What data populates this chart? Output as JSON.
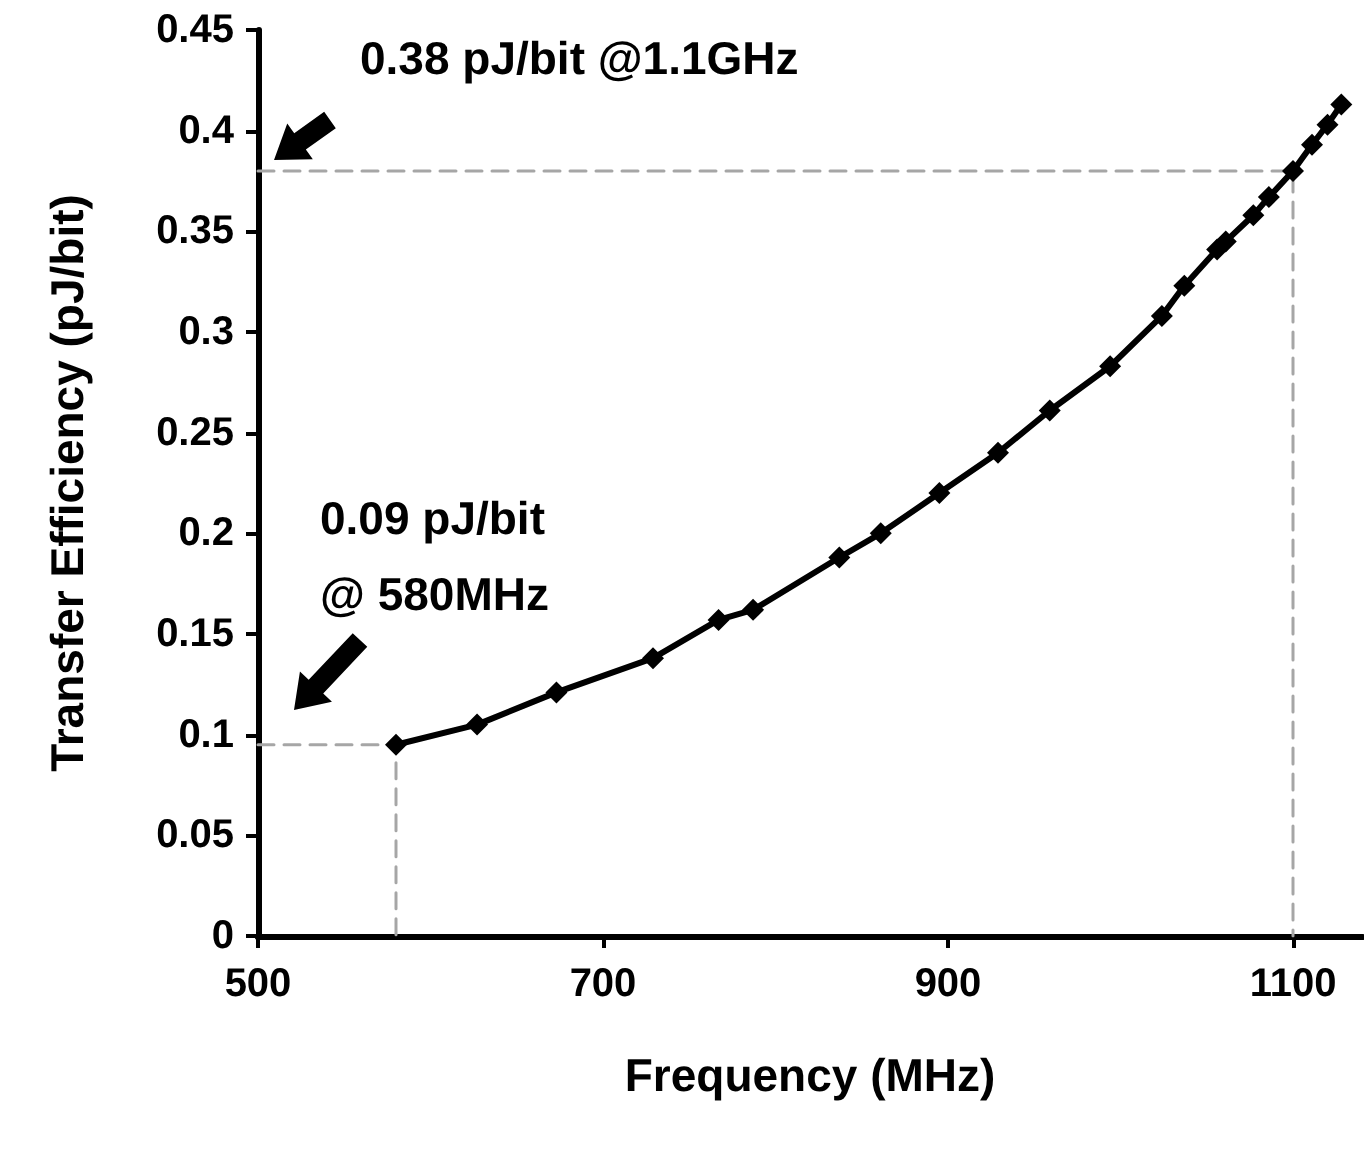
{
  "chart_data": {
    "type": "line",
    "xlabel": "Frequency (MHz)",
    "ylabel": "Transfer Efficiency (pJ/bit)",
    "xlim": [
      500,
      1140
    ],
    "xticks": [
      500,
      700,
      900,
      1100
    ],
    "ylim": [
      0,
      0.45
    ],
    "yticks": [
      0,
      0.05,
      0.1,
      0.15,
      0.2,
      0.25,
      0.3,
      0.35,
      0.4,
      0.45
    ],
    "grid": false,
    "annotations": [
      "0.38 pJ/bit @1.1GHz",
      "0.09 pJ/bit\n@ 580MHz"
    ],
    "series": [
      {
        "color": "#000000",
        "marker": "diamond",
        "line_style": "solid",
        "x": [
          580,
          627,
          673,
          729,
          767,
          787,
          837,
          861,
          895,
          929,
          959,
          994,
          1024,
          1037,
          1056,
          1061,
          1077,
          1086,
          1100,
          1111,
          1120,
          1128
        ],
        "values": [
          0.095,
          0.105,
          0.121,
          0.138,
          0.157,
          0.162,
          0.188,
          0.2,
          0.22,
          0.24,
          0.261,
          0.283,
          0.308,
          0.323,
          0.341,
          0.345,
          0.358,
          0.367,
          0.38,
          0.393,
          0.403,
          0.413
        ]
      },
      {
        "type": "line",
        "color": "#a6a6a6",
        "marker": "none",
        "line_style": "dashed",
        "x": [
          500,
          1100,
          1100
        ],
        "values": [
          0.38,
          0.38,
          0
        ]
      },
      {
        "type": "line",
        "color": "#a6a6a6",
        "marker": "none",
        "line_style": "dashed",
        "x": [
          500,
          580,
          580
        ],
        "values": [
          0.095,
          0.095,
          0
        ]
      }
    ]
  }
}
